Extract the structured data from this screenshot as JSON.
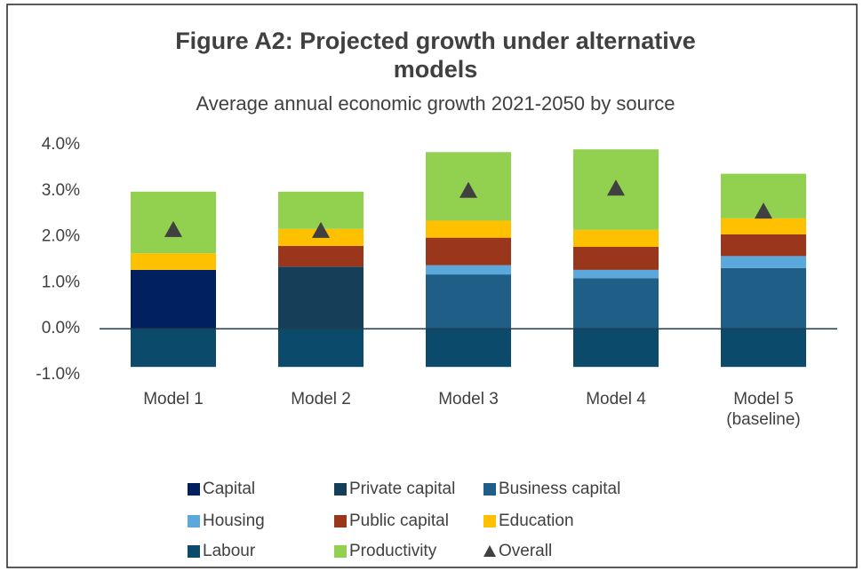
{
  "chart_data": {
    "type": "bar",
    "stacked": true,
    "title": "Figure A2: Projected growth under alternative models",
    "subtitle": "Average annual economic growth 2021-2050 by source",
    "categories": [
      "Model 1",
      "Model 2",
      "Model 3",
      "Model 4",
      "Model 5 (baseline)"
    ],
    "ylim": [
      -1,
      4
    ],
    "yticks": [
      {
        "value": -1,
        "label": "-1.0%"
      },
      {
        "value": 0,
        "label": "0.0%"
      },
      {
        "value": 1,
        "label": "1.0%"
      },
      {
        "value": 2,
        "label": "2.0%"
      },
      {
        "value": 3,
        "label": "3.0%"
      },
      {
        "value": 4,
        "label": "4.0%"
      }
    ],
    "grid": false,
    "legend": "bottom",
    "series": [
      {
        "name": "Capital",
        "color": "#002060",
        "values": [
          1.28,
          null,
          null,
          null,
          null
        ]
      },
      {
        "name": "Private capital",
        "color": "#153f58",
        "values": [
          null,
          1.35,
          null,
          null,
          null
        ]
      },
      {
        "name": "Business capital",
        "color": "#1f5f87",
        "values": [
          null,
          null,
          1.18,
          1.1,
          1.32
        ]
      },
      {
        "name": "Housing",
        "color": "#5ba8dc",
        "values": [
          null,
          null,
          0.2,
          0.18,
          0.26
        ]
      },
      {
        "name": "Public capital",
        "color": "#99361c",
        "values": [
          null,
          0.45,
          0.6,
          0.5,
          0.47
        ]
      },
      {
        "name": "Education",
        "color": "#ffc000",
        "values": [
          0.36,
          0.37,
          0.37,
          0.37,
          0.35
        ]
      },
      {
        "name": "Labour",
        "color": "#0b4a6a",
        "values": [
          -0.83,
          -0.83,
          -0.83,
          -0.83,
          -0.83
        ]
      },
      {
        "name": "Productivity",
        "color": "#92d050",
        "values": [
          1.34,
          0.81,
          1.49,
          1.75,
          0.97
        ]
      },
      {
        "name": "Overall",
        "color": "#404040",
        "marker": "triangle",
        "values": [
          2.15,
          2.13,
          3.0,
          3.05,
          2.55
        ]
      }
    ]
  }
}
